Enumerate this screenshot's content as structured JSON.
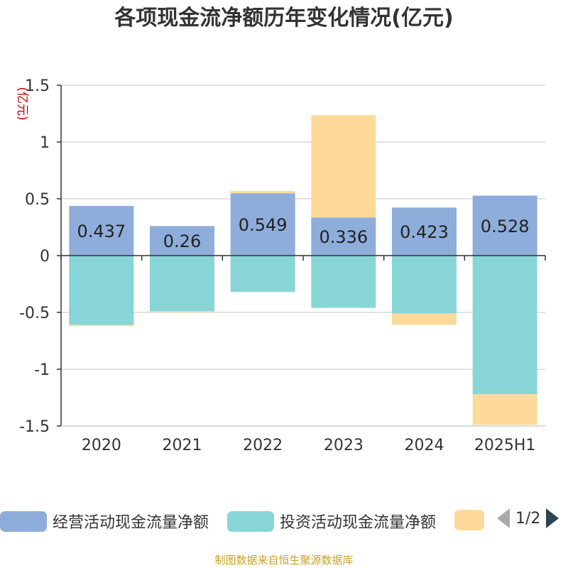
{
  "title": "各项现金流净额历年变化情况(亿元)",
  "footer": "制图数据来自恒生聚源数据库",
  "legend": {
    "items": [
      {
        "label": "经营活动现金流量净额",
        "color": "#8eaddb"
      },
      {
        "label": "投资活动现金流量净额",
        "color": "#88d5d7"
      },
      {
        "label": "",
        "color": "#fdd99a"
      }
    ],
    "page_label": "1/2"
  },
  "chart_data": {
    "type": "bar",
    "stacked": true,
    "title": "各项现金流净额历年变化情况(亿元)",
    "ylabel": "(亿元)",
    "ylim": [
      -1.5,
      1.5
    ],
    "yticks": [
      1.5,
      1,
      0.5,
      0,
      -0.5,
      -1,
      -1.5
    ],
    "ytick_labels": [
      "1.5",
      "1",
      "0.5",
      "0",
      "-0.5",
      "-1",
      "-1.5"
    ],
    "grid": true,
    "legend_position": "bottom",
    "categories": [
      "2020",
      "2021",
      "2022",
      "2023",
      "2024",
      "2025H1"
    ],
    "series": [
      {
        "name": "经营活动现金流量净额",
        "color": "#8eaddb",
        "values": [
          0.437,
          0.26,
          0.549,
          0.336,
          0.423,
          0.528
        ],
        "data_labels": [
          "0.437",
          "0.26",
          "0.549",
          "0.336",
          "0.423",
          "0.528"
        ]
      },
      {
        "name": "投资活动现金流量净额",
        "color": "#88d5d7",
        "values": [
          -0.61,
          -0.49,
          -0.32,
          -0.46,
          -0.51,
          -1.22
        ]
      },
      {
        "name": "",
        "color": "#fdd99a",
        "values": [
          -0.01,
          -0.01,
          0.02,
          0.9,
          -0.1,
          -0.27
        ]
      }
    ]
  }
}
